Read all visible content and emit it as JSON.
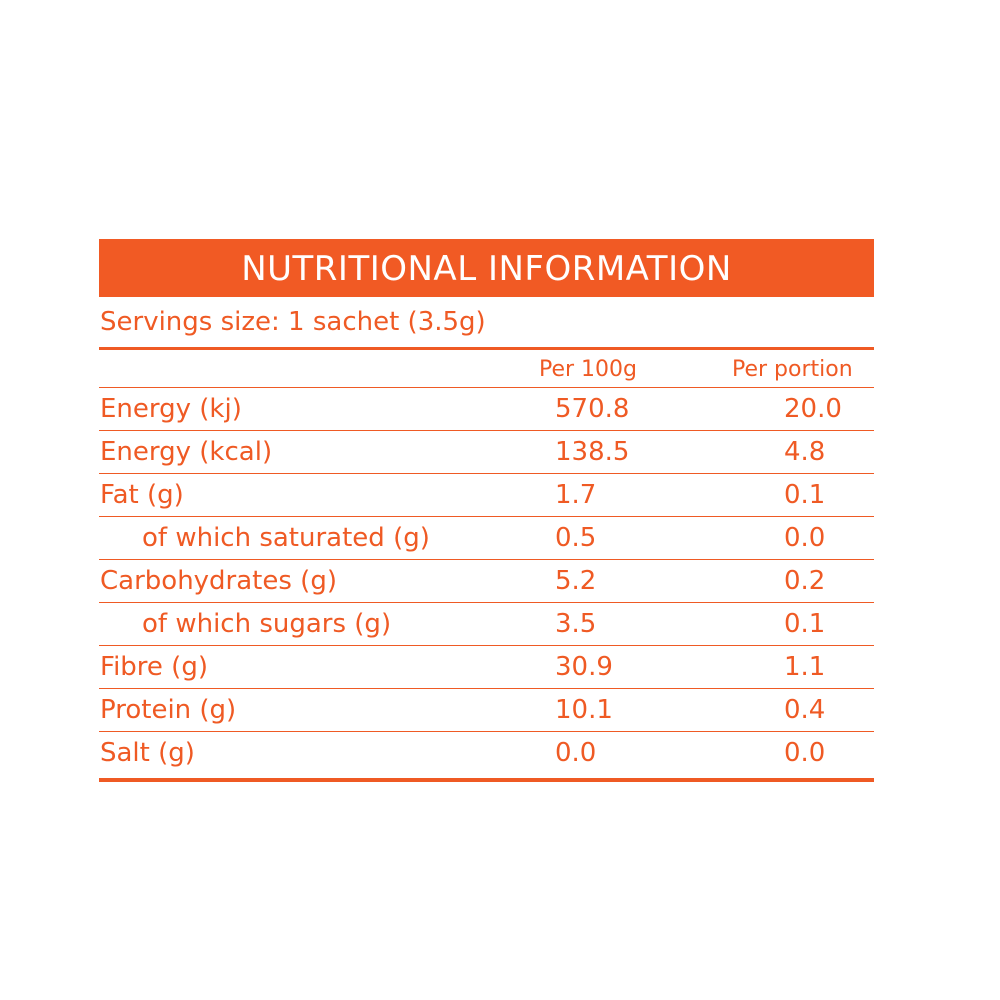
{
  "title": "NUTRITIONAL INFORMATION",
  "serving_size": "Servings size: 1 sachet (3.5g)",
  "columns": {
    "per_100g": "Per 100g",
    "per_portion": "Per portion"
  },
  "rows": [
    {
      "label": "Energy (kj)",
      "per_100g": "570.8",
      "per_portion": "20.0"
    },
    {
      "label": "Energy (kcal)",
      "per_100g": "138.5",
      "per_portion": "4.8"
    },
    {
      "label": "Fat (g)",
      "per_100g": "1.7",
      "per_portion": "0.1"
    },
    {
      "label": "of which saturated (g)",
      "per_100g": "0.5",
      "per_portion": "0.0"
    },
    {
      "label": "Carbohydrates (g)",
      "per_100g": "5.2",
      "per_portion": "0.2"
    },
    {
      "label": "of which sugars (g)",
      "per_100g": "3.5",
      "per_portion": "0.1"
    },
    {
      "label": "Fibre (g)",
      "per_100g": "30.9",
      "per_portion": "1.1"
    },
    {
      "label": "Protein (g)",
      "per_100g": "10.1",
      "per_portion": "0.4"
    },
    {
      "label": "Salt (g)",
      "per_100g": "0.0",
      "per_portion": "0.0"
    }
  ],
  "colors": {
    "accent": "#f15a24",
    "header_text": "#ffffff"
  }
}
